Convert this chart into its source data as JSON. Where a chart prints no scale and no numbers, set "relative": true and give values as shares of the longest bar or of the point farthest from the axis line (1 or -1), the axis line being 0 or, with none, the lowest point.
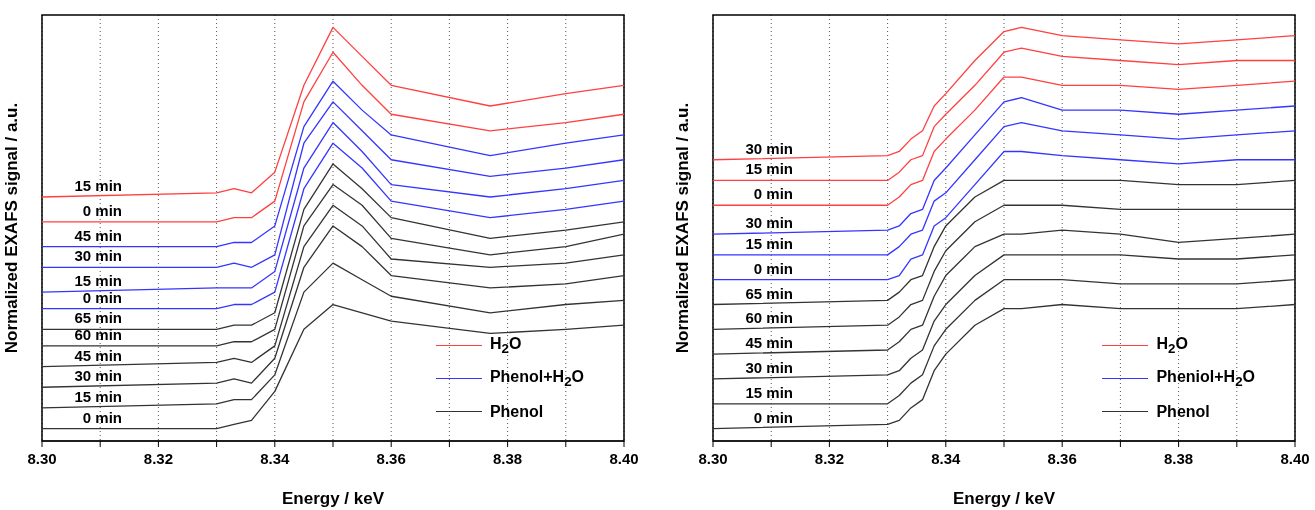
{
  "chart_data": [
    {
      "type": "line",
      "relative": true,
      "xlabel": "Energy / keV",
      "ylabel": "Normalized EXAFS signal / a.u.",
      "xlim": [
        8.3,
        8.4
      ],
      "xticks": [
        {
          "value": 8.3,
          "label": "8.30"
        },
        {
          "value": 8.31,
          "label": null
        },
        {
          "value": 8.32,
          "label": "8.32"
        },
        {
          "value": 8.33,
          "label": null
        },
        {
          "value": 8.34,
          "label": "8.34"
        },
        {
          "value": 8.35,
          "label": null
        },
        {
          "value": 8.36,
          "label": "8.36"
        },
        {
          "value": 8.37,
          "label": null
        },
        {
          "value": 8.38,
          "label": "8.38"
        },
        {
          "value": 8.39,
          "label": null
        },
        {
          "value": 8.4,
          "label": "8.40"
        }
      ],
      "grid": "x",
      "annotations": [
        "H$_{2}$O",
        "Phenol+H$_{2}$O",
        "Phenol"
      ],
      "x": [
        8.3,
        8.33,
        8.333,
        8.336,
        8.34,
        8.345,
        8.35,
        8.355,
        8.36,
        8.377,
        8.39,
        8.4
      ],
      "series": [
        {
          "name": "15 min",
          "color": "#ff4040",
          "values": [
            0.59,
            0.6,
            0.61,
            0.6,
            0.65,
            0.86,
            1,
            0.93,
            0.86,
            0.81,
            0.84,
            0.86
          ]
        },
        {
          "name": "0 min",
          "color": "#ff4040",
          "values": [
            0.53,
            0.53,
            0.54,
            0.54,
            0.58,
            0.82,
            0.94,
            0.86,
            0.79,
            0.75,
            0.77,
            0.79
          ]
        },
        {
          "name": "45 min",
          "color": "#3535ff",
          "values": [
            0.47,
            0.47,
            0.48,
            0.48,
            0.52,
            0.76,
            0.87,
            0.8,
            0.74,
            0.69,
            0.72,
            0.74
          ]
        },
        {
          "name": "30 min",
          "color": "#3535ff",
          "values": [
            0.42,
            0.42,
            0.43,
            0.42,
            0.45,
            0.72,
            0.82,
            0.75,
            0.68,
            0.64,
            0.66,
            0.68
          ]
        },
        {
          "name": "15 min",
          "color": "#3535ff",
          "values": [
            0.36,
            0.37,
            0.37,
            0.37,
            0.41,
            0.66,
            0.77,
            0.7,
            0.62,
            0.59,
            0.61,
            0.63
          ]
        },
        {
          "name": "0 min",
          "color": "#3535ff",
          "values": [
            0.32,
            0.32,
            0.33,
            0.33,
            0.36,
            0.61,
            0.72,
            0.66,
            0.58,
            0.54,
            0.56,
            0.58
          ]
        },
        {
          "name": "65 min",
          "color": "#333333",
          "values": [
            0.27,
            0.27,
            0.28,
            0.28,
            0.31,
            0.56,
            0.67,
            0.61,
            0.54,
            0.49,
            0.51,
            0.53
          ]
        },
        {
          "name": "60 min",
          "color": "#333333",
          "values": [
            0.23,
            0.23,
            0.24,
            0.24,
            0.27,
            0.52,
            0.62,
            0.57,
            0.49,
            0.45,
            0.47,
            0.5
          ]
        },
        {
          "name": "45 min",
          "color": "#333333",
          "values": [
            0.18,
            0.19,
            0.2,
            0.19,
            0.23,
            0.47,
            0.57,
            0.52,
            0.44,
            0.42,
            0.43,
            0.45
          ]
        },
        {
          "name": "30 min",
          "color": "#333333",
          "values": [
            0.13,
            0.14,
            0.15,
            0.14,
            0.2,
            0.42,
            0.52,
            0.47,
            0.4,
            0.37,
            0.38,
            0.4
          ]
        },
        {
          "name": "15 min",
          "color": "#333333",
          "values": [
            0.08,
            0.09,
            0.1,
            0.1,
            0.16,
            0.36,
            0.43,
            0.39,
            0.35,
            0.31,
            0.33,
            0.34
          ]
        },
        {
          "name": "0 min",
          "color": "#333333",
          "values": [
            0.03,
            0.03,
            0.04,
            0.05,
            0.12,
            0.27,
            0.33,
            0.31,
            0.29,
            0.26,
            0.27,
            0.28
          ]
        }
      ]
    },
    {
      "type": "line",
      "relative": true,
      "xlabel": "Energy / keV",
      "ylabel": "Normalized EXAFS signal / a.u.",
      "xlim": [
        8.3,
        8.4
      ],
      "xticks": [
        {
          "value": 8.3,
          "label": "8.30"
        },
        {
          "value": 8.31,
          "label": null
        },
        {
          "value": 8.32,
          "label": "8.32"
        },
        {
          "value": 8.33,
          "label": null
        },
        {
          "value": 8.34,
          "label": "8.34"
        },
        {
          "value": 8.35,
          "label": null
        },
        {
          "value": 8.36,
          "label": "8.36"
        },
        {
          "value": 8.37,
          "label": null
        },
        {
          "value": 8.38,
          "label": "8.38"
        },
        {
          "value": 8.39,
          "label": null
        },
        {
          "value": 8.4,
          "label": "8.40"
        }
      ],
      "grid": "x",
      "annotations": [
        "H$_{2}$O",
        "Pheniol+H$_{2}$O",
        "Phenol"
      ],
      "x": [
        8.3,
        8.33,
        8.332,
        8.334,
        8.336,
        8.338,
        8.34,
        8.345,
        8.35,
        8.353,
        8.36,
        8.37,
        8.38,
        8.39,
        8.4
      ],
      "series": [
        {
          "name": "30 min",
          "color": "#ff4040",
          "values": [
            0.68,
            0.69,
            0.7,
            0.73,
            0.75,
            0.81,
            0.84,
            0.92,
            0.99,
            1,
            0.98,
            0.97,
            0.96,
            0.97,
            0.98
          ]
        },
        {
          "name": "15 min",
          "color": "#ff4040",
          "values": [
            0.63,
            0.63,
            0.65,
            0.68,
            0.69,
            0.76,
            0.79,
            0.86,
            0.94,
            0.95,
            0.93,
            0.92,
            0.91,
            0.92,
            0.92
          ]
        },
        {
          "name": "0 min",
          "color": "#ff4040",
          "values": [
            0.57,
            0.57,
            0.59,
            0.62,
            0.63,
            0.7,
            0.73,
            0.8,
            0.88,
            0.88,
            0.86,
            0.86,
            0.85,
            0.86,
            0.87
          ]
        },
        {
          "name": "30 min",
          "color": "#3535ff",
          "values": [
            0.5,
            0.51,
            0.52,
            0.55,
            0.56,
            0.63,
            0.66,
            0.74,
            0.82,
            0.83,
            0.8,
            0.8,
            0.79,
            0.8,
            0.81
          ]
        },
        {
          "name": "15 min",
          "color": "#3535ff",
          "values": [
            0.45,
            0.45,
            0.47,
            0.5,
            0.51,
            0.58,
            0.6,
            0.68,
            0.76,
            0.77,
            0.75,
            0.74,
            0.73,
            0.74,
            0.75
          ]
        },
        {
          "name": "0 min",
          "color": "#3535ff",
          "values": [
            0.39,
            0.39,
            0.4,
            0.44,
            0.45,
            0.52,
            0.54,
            0.62,
            0.7,
            0.7,
            0.69,
            0.68,
            0.67,
            0.68,
            0.68
          ]
        },
        {
          "name": "65 min",
          "color": "#333333",
          "values": [
            0.33,
            0.34,
            0.36,
            0.39,
            0.4,
            0.47,
            0.52,
            0.59,
            0.63,
            0.63,
            0.63,
            0.63,
            0.62,
            0.62,
            0.63
          ]
        },
        {
          "name": "60 min",
          "color": "#333333",
          "values": [
            0.27,
            0.28,
            0.3,
            0.33,
            0.34,
            0.41,
            0.46,
            0.53,
            0.57,
            0.57,
            0.57,
            0.56,
            0.56,
            0.56,
            0.56
          ]
        },
        {
          "name": "45 min",
          "color": "#333333",
          "values": [
            0.21,
            0.22,
            0.24,
            0.27,
            0.28,
            0.35,
            0.4,
            0.47,
            0.5,
            0.5,
            0.51,
            0.5,
            0.48,
            0.49,
            0.5
          ]
        },
        {
          "name": "30 min",
          "color": "#333333",
          "values": [
            0.15,
            0.16,
            0.17,
            0.2,
            0.22,
            0.29,
            0.33,
            0.4,
            0.45,
            0.45,
            0.45,
            0.45,
            0.44,
            0.44,
            0.45
          ]
        },
        {
          "name": "15 min",
          "color": "#333333",
          "values": [
            0.09,
            0.09,
            0.11,
            0.14,
            0.16,
            0.23,
            0.27,
            0.34,
            0.39,
            0.39,
            0.39,
            0.38,
            0.38,
            0.38,
            0.39
          ]
        },
        {
          "name": "0 min",
          "color": "#333333",
          "values": [
            0.03,
            0.04,
            0.05,
            0.08,
            0.1,
            0.17,
            0.21,
            0.28,
            0.32,
            0.32,
            0.33,
            0.32,
            0.32,
            0.32,
            0.33
          ]
        }
      ]
    }
  ]
}
